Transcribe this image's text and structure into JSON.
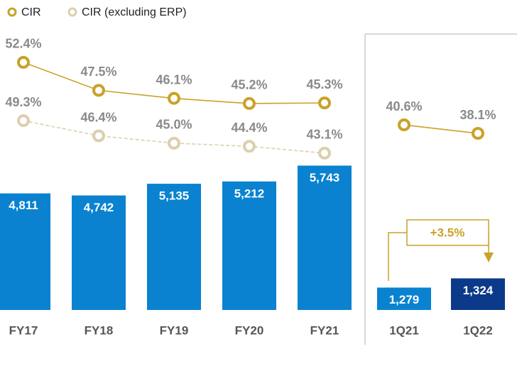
{
  "chart_data": [
    {
      "type": "combo",
      "categories": [
        "FY17",
        "FY18",
        "FY19",
        "FY20",
        "FY21"
      ],
      "values": [
        4811,
        4742,
        5135,
        5212,
        5743
      ],
      "value_labels": [
        "4,811",
        "4,742",
        "5,135",
        "5,212",
        "5,743"
      ],
      "colors": [
        "#0a82d0",
        "#0a82d0",
        "#0a82d0",
        "#0a82d0",
        "#0a82d0"
      ],
      "ylim": [
        900,
        11300
      ],
      "y2lim": [
        9.1,
        63.3
      ],
      "y3lim": [
        13.2,
        72.3
      ],
      "series": [
        {
          "name": "CIR",
          "color": "#c9a227",
          "axis": "y2",
          "dashed": false,
          "values": [
            52.4,
            47.5,
            46.1,
            45.2,
            45.3
          ],
          "value_labels": [
            "52.4%",
            "47.5%",
            "46.1%",
            "45.2%",
            "45.3%"
          ]
        },
        {
          "name": "CIR (excluding ERP)",
          "color": "#dccfae",
          "axis": "y3",
          "dashed": true,
          "values": [
            49.3,
            46.4,
            45.0,
            44.4,
            43.1
          ],
          "value_labels": [
            "49.3%",
            "46.4%",
            "45.0%",
            "44.4%",
            "43.1%"
          ]
        }
      ]
    },
    {
      "type": "combo",
      "categories": [
        "1Q21",
        "1Q22"
      ],
      "values": [
        1279,
        1324
      ],
      "value_labels": [
        "1,279",
        "1,324"
      ],
      "colors": [
        "#0a82d0",
        "#0c3a8a"
      ],
      "ylim": [
        1170,
        2680
      ],
      "y2lim": [
        -13.8,
        77.3
      ],
      "series": [
        {
          "color": "#c9a227",
          "axis": "y2",
          "dashed": false,
          "values": [
            40.6,
            38.1
          ],
          "value_labels": [
            "40.6%",
            "38.1%"
          ]
        }
      ],
      "annotations": [
        {
          "text": "+3.5%"
        }
      ]
    }
  ]
}
